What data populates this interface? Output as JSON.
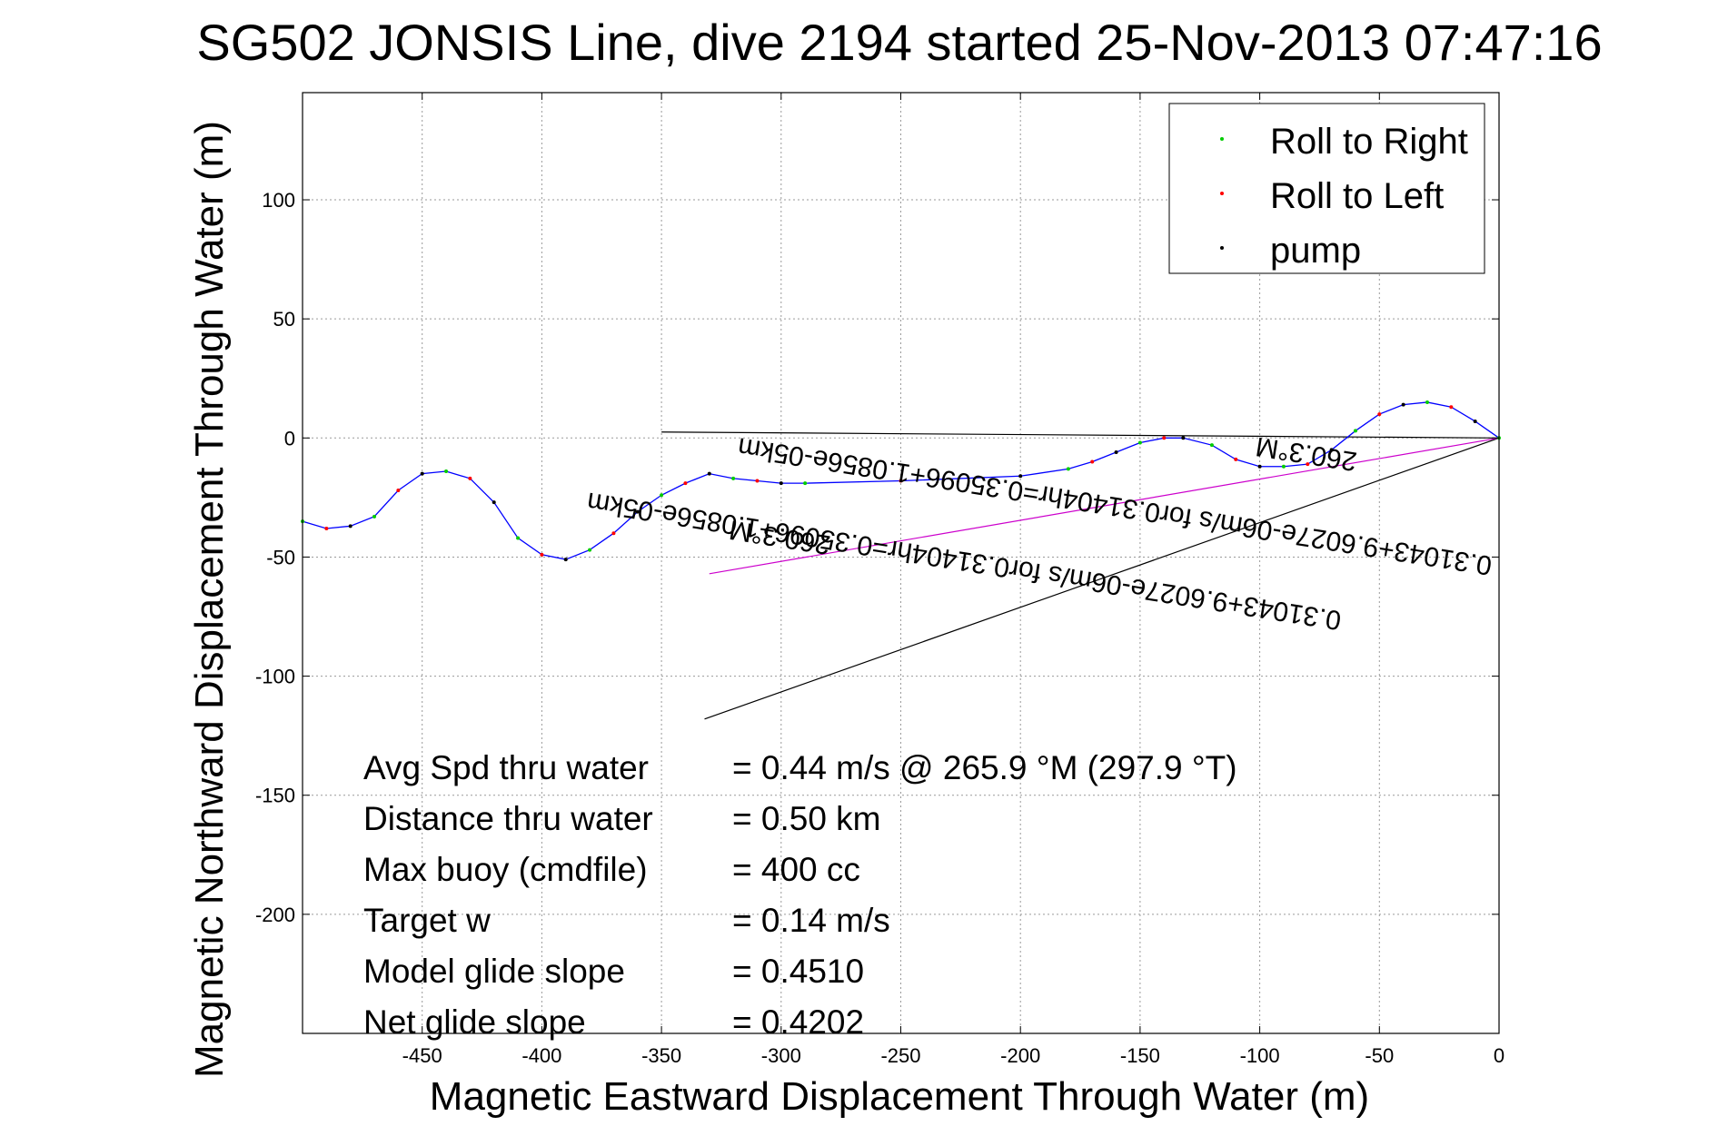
{
  "chart_data": {
    "type": "scatter",
    "title": "SG502 JONSIS Line, dive 2194 started 25-Nov-2013 07:47:16",
    "xlabel": "Magnetic Eastward Displacement Through Water (m)",
    "ylabel": "Magnetic Northward Displacement Through Water (m)",
    "xlim": [
      -500,
      0
    ],
    "ylim": [
      -250,
      145
    ],
    "xticks": [
      -450,
      -400,
      -350,
      -300,
      -250,
      -200,
      -150,
      -100,
      -50,
      0
    ],
    "yticks": [
      100,
      50,
      0,
      -50,
      -100,
      -150,
      -200
    ],
    "grid": true,
    "legend_position": "top-right",
    "legend": [
      {
        "name": "Roll to Right",
        "color": "#00cc00"
      },
      {
        "name": "Roll to Left",
        "color": "#ff0000"
      },
      {
        "name": "pump",
        "color": "#000000"
      }
    ],
    "track": {
      "color": "#0000ff",
      "x": [
        -500,
        -490,
        -480,
        -470,
        -460,
        -450,
        -440,
        -430,
        -420,
        -410,
        -400,
        -390,
        -380,
        -370,
        -360,
        -350,
        -340,
        -330,
        -320,
        -310,
        -300,
        -290,
        -250,
        -200,
        -180,
        -170,
        -160,
        -150,
        -140,
        -132,
        -120,
        -110,
        -100,
        -90,
        -80,
        -70,
        -60,
        -50,
        -40,
        -30,
        -20,
        -10,
        0
      ],
      "y": [
        -35,
        -38,
        -37,
        -33,
        -22,
        -15,
        -14,
        -17,
        -27,
        -42,
        -49,
        -51,
        -47,
        -40,
        -31,
        -24,
        -19,
        -15,
        -17,
        -18,
        -19,
        -19,
        -18,
        -16,
        -13,
        -10,
        -6,
        -2,
        0,
        0,
        -3,
        -9,
        -12,
        -12,
        -11,
        -5,
        3,
        10,
        14,
        15,
        13,
        7,
        0
      ]
    },
    "reference_lines": [
      {
        "name": "overlay-line-flat",
        "color": "#000000",
        "x": [
          -350,
          0
        ],
        "y": [
          2.5,
          0
        ]
      },
      {
        "name": "overlay-line-steep",
        "color": "#000000",
        "x": [
          -332,
          0
        ],
        "y": [
          -118,
          0
        ]
      },
      {
        "name": "overlay-line-magenta",
        "color": "#cc00cc",
        "x": [
          -330,
          0
        ],
        "y": [
          -57,
          0
        ]
      }
    ],
    "rotated_labels": [
      {
        "text": "0.31043+9.6027e-06m/s for0.31404hr=0.35096+1.0856e-05km",
        "x": -223,
        "y": -48,
        "angle": 189
      },
      {
        "text": "260.3°M",
        "x": -300,
        "y": -38,
        "angle": 189
      },
      {
        "text": "0.31043+9.6027e-06m/s for0.31404hr=0.35096+1.0856e-05km",
        "x": -160,
        "y": -25,
        "angle": 189
      },
      {
        "text": "260.3°M",
        "x": -80,
        "y": -3,
        "angle": 189
      }
    ],
    "annotations": [
      {
        "label": "Avg Spd thru water",
        "value": "=  0.44 m/s @ 265.9 °M (297.9 °T)"
      },
      {
        "label": "Distance thru water",
        "value": "=  0.50 km"
      },
      {
        "label": "Max buoy (cmdfile)",
        "value": "= 400 cc"
      },
      {
        "label": "Target w",
        "value": "= 0.14 m/s"
      },
      {
        "label": "Model glide slope",
        "value": "= 0.4510"
      },
      {
        "label": "Net glide slope",
        "value": "= 0.4202"
      }
    ]
  }
}
